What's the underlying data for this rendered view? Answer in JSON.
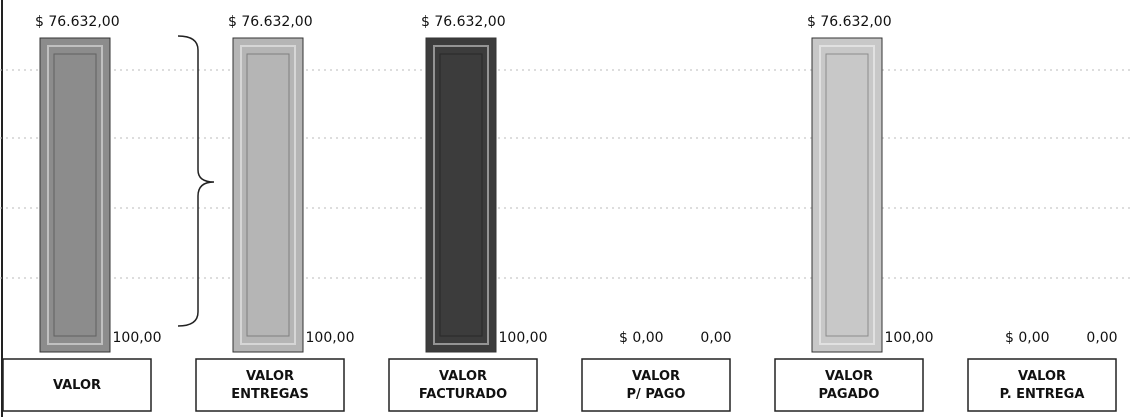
{
  "chart_data": {
    "type": "bar",
    "categories": [
      [
        "VALOR"
      ],
      [
        "VALOR",
        "ENTREGAS"
      ],
      [
        "VALOR",
        "FACTURADO"
      ],
      [
        "VALOR",
        "P/ PAGO"
      ],
      [
        "VALOR",
        "PAGADO"
      ],
      [
        "VALOR",
        "P. ENTREGA"
      ]
    ],
    "ylim": [
      0,
      76632
    ],
    "series": [
      {
        "values": [
          76632,
          76632,
          76632,
          0,
          76632,
          0
        ],
        "value_labels": [
          "$ 76.632,00",
          "$ 76.632,00",
          "$ 76.632,00",
          "$ 0,00",
          "$ 76.632,00",
          "$ 0,00"
        ],
        "colors": [
          "#8c8c8c",
          "#b5b5b5",
          "#3c3c3c",
          "#c4c4c4",
          "#c8c8c8",
          "#c4c4c4"
        ]
      },
      {
        "values": [
          100,
          100,
          100,
          0,
          100,
          0
        ],
        "value_labels": [
          "100,00",
          "100,00",
          "100,00",
          "0,00",
          "100,00",
          "0,00"
        ]
      }
    ]
  }
}
